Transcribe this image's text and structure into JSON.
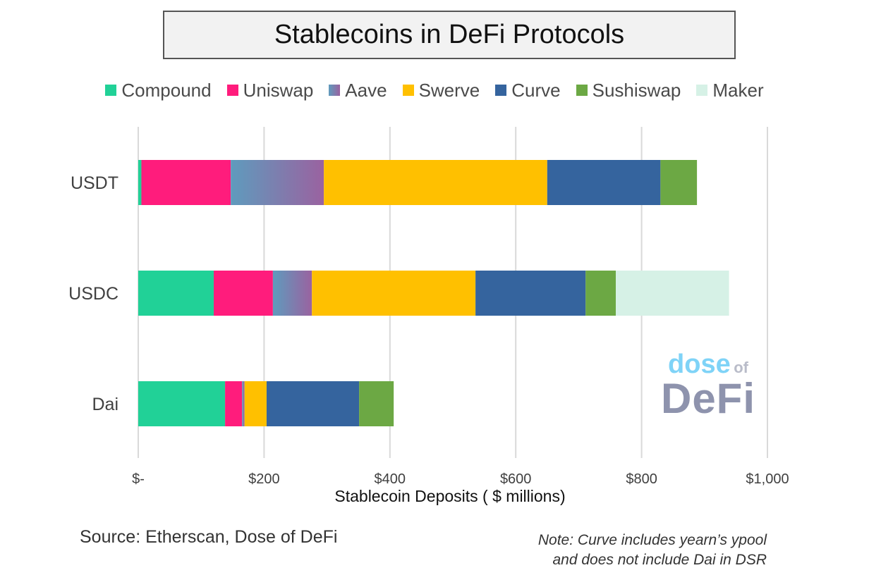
{
  "chart_data": {
    "type": "bar",
    "orientation": "horizontal",
    "stacked": true,
    "title": "Stablecoins in DeFi Protocols",
    "xlabel": "Stablecoin Deposits ( $ millions)",
    "ylabel": "",
    "xlim": [
      0,
      1000
    ],
    "x_ticks": [
      0,
      200,
      400,
      600,
      800,
      1000
    ],
    "x_tick_labels": [
      "$-",
      "$200",
      "$400",
      "$600",
      "$800",
      "$1,000"
    ],
    "grid": "vertical",
    "legend_position": "top",
    "categories": [
      "USDT",
      "USDC",
      "Dai"
    ],
    "series": [
      {
        "name": "Compound",
        "color": "#21d197",
        "values": [
          5,
          120,
          138
        ]
      },
      {
        "name": "Uniswap",
        "color": "#ff1c7c",
        "values": [
          142,
          94,
          27
        ]
      },
      {
        "name": "Aave",
        "color": "gradient:#5f9bbd-#9a62a0",
        "values": [
          148,
          62,
          4
        ]
      },
      {
        "name": "Swerve",
        "color": "#ffc000",
        "values": [
          355,
          260,
          35
        ]
      },
      {
        "name": "Curve",
        "color": "#35649e",
        "values": [
          180,
          175,
          147
        ]
      },
      {
        "name": "Sushiswap",
        "color": "#6ca844",
        "values": [
          58,
          48,
          55
        ]
      },
      {
        "name": "Maker",
        "color": "#d6f1e6",
        "values": [
          0,
          180,
          0
        ]
      }
    ]
  },
  "source_text": "Source: Etherscan, Dose of DeFi",
  "note_lines": [
    "Note: Curve includes yearn’s ypool",
    "and does not include Dai in DSR"
  ],
  "watermark": {
    "line1": "dose",
    "line1_suffix": "of",
    "line2": "DeFi"
  }
}
